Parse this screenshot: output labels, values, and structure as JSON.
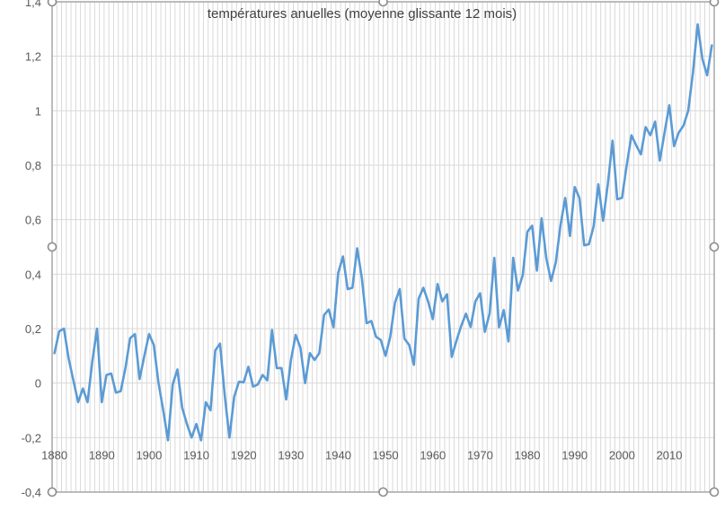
{
  "chart_data": {
    "type": "line",
    "title": "températures anuelles (moyenne glissante 12 mois)",
    "xlabel": "",
    "ylabel": "",
    "ylim": [
      -0.4,
      1.4
    ],
    "ytick_step": 0.2,
    "yticks": [
      "-0,4",
      "-0,2",
      "0",
      "0,2",
      "0,4",
      "0,6",
      "0,8",
      "1",
      "1,2",
      "1,4"
    ],
    "x_start": 1880,
    "x_end": 2019,
    "xticks": [
      "1880",
      "1890",
      "1900",
      "1910",
      "1920",
      "1930",
      "1940",
      "1950",
      "1960",
      "1970",
      "1980",
      "1990",
      "2000",
      "2010"
    ],
    "x_axis_crosses_at": -0.2,
    "grid": {
      "horizontal": true,
      "vertical_per_year": true
    },
    "legend": "none",
    "line_color": "#5B9BD5",
    "grid_color": "#D9D9D9",
    "border_color": "#A6A6A6",
    "series": [
      {
        "name": "températures anuelles",
        "values": [
          0.11,
          0.19,
          0.2,
          0.09,
          0.01,
          -0.07,
          -0.02,
          -0.07,
          0.08,
          0.2,
          -0.07,
          0.03,
          0.035,
          -0.035,
          -0.03,
          0.055,
          0.165,
          0.18,
          0.015,
          0.1,
          0.18,
          0.14,
          0.0,
          -0.1,
          -0.21,
          -0.005,
          0.05,
          -0.09,
          -0.15,
          -0.2,
          -0.15,
          -0.21,
          -0.07,
          -0.1,
          0.12,
          0.145,
          -0.045,
          -0.2,
          -0.05,
          0.005,
          0.003,
          0.06,
          -0.013,
          -0.005,
          0.03,
          0.01,
          0.195,
          0.055,
          0.055,
          -0.06,
          0.085,
          0.177,
          0.13,
          0.0,
          0.11,
          0.085,
          0.11,
          0.25,
          0.27,
          0.205,
          0.405,
          0.465,
          0.345,
          0.35,
          0.495,
          0.385,
          0.22,
          0.228,
          0.17,
          0.158,
          0.1,
          0.17,
          0.296,
          0.345,
          0.163,
          0.14,
          0.067,
          0.31,
          0.35,
          0.3,
          0.235,
          0.364,
          0.3,
          0.326,
          0.096,
          0.156,
          0.21,
          0.255,
          0.206,
          0.3,
          0.33,
          0.188,
          0.255,
          0.46,
          0.205,
          0.268,
          0.153,
          0.46,
          0.34,
          0.395,
          0.556,
          0.578,
          0.413,
          0.605,
          0.458,
          0.375,
          0.443,
          0.58,
          0.68,
          0.54,
          0.72,
          0.68,
          0.506,
          0.51,
          0.575,
          0.73,
          0.596,
          0.73,
          0.89,
          0.675,
          0.68,
          0.8,
          0.91,
          0.873,
          0.84,
          0.94,
          0.91,
          0.96,
          0.817,
          0.92,
          1.02,
          0.87,
          0.92,
          0.945,
          1.0,
          1.14,
          1.317,
          1.19,
          1.13,
          1.24
        ]
      }
    ]
  }
}
